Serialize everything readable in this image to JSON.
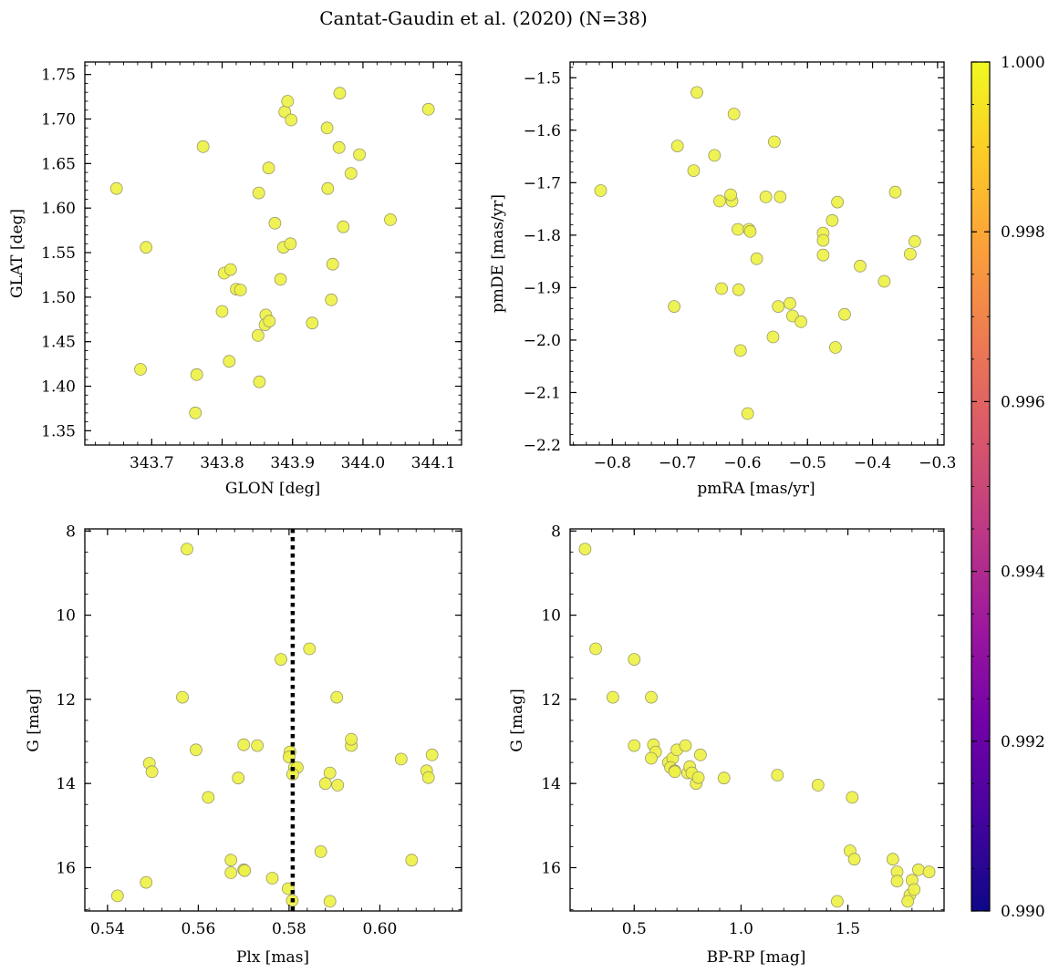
{
  "figure": {
    "title": "Cantat-Gaudin et al. (2020) (N=38)"
  },
  "colors": {
    "point_fill": "#eef145",
    "point_edge": "#9a9a6a",
    "vline": "#000000",
    "colormap": [
      "#0d0887",
      "#46039f",
      "#7201a8",
      "#9c179e",
      "#bd3786",
      "#d8576b",
      "#ed7953",
      "#fb9f3a",
      "#fdca26",
      "#f0f921"
    ]
  },
  "colorbar": {
    "range": [
      0.99,
      1.0
    ],
    "ticks": [
      "0.990",
      "0.992",
      "0.994",
      "0.996",
      "0.998",
      "1.000"
    ]
  },
  "chart_data": [
    {
      "id": "p1",
      "type": "scatter",
      "title": "",
      "xlabel": "GLON [deg]",
      "ylabel": "GLAT [deg]",
      "xlim": [
        343.605,
        344.14
      ],
      "ylim": [
        1.334,
        1.764
      ],
      "xticks": [
        "343.7",
        "343.8",
        "343.9",
        "344.0",
        "344.1"
      ],
      "yticks": [
        "1.35",
        "1.40",
        "1.45",
        "1.50",
        "1.55",
        "1.60",
        "1.65",
        "1.70",
        "1.75"
      ],
      "x": [
        343.65,
        343.692,
        343.684,
        343.773,
        343.764,
        343.762,
        343.8,
        343.803,
        343.812,
        343.81,
        343.82,
        343.826,
        343.852,
        343.851,
        343.853,
        343.862,
        343.861,
        343.867,
        343.866,
        343.875,
        343.883,
        343.887,
        343.889,
        343.893,
        343.898,
        343.897,
        343.928,
        343.949,
        343.95,
        343.955,
        343.957,
        343.967,
        343.966,
        343.972,
        343.983,
        343.995,
        344.039,
        344.093
      ],
      "y": [
        1.622,
        1.556,
        1.419,
        1.669,
        1.413,
        1.37,
        1.484,
        1.527,
        1.531,
        1.428,
        1.509,
        1.508,
        1.617,
        1.457,
        1.405,
        1.48,
        1.469,
        1.473,
        1.645,
        1.583,
        1.52,
        1.556,
        1.708,
        1.72,
        1.699,
        1.56,
        1.471,
        1.69,
        1.622,
        1.497,
        1.537,
        1.729,
        1.668,
        1.579,
        1.639,
        1.66,
        1.587,
        1.711
      ]
    },
    {
      "id": "p2",
      "type": "scatter",
      "title": "",
      "xlabel": "pmRA [mas/yr]",
      "ylabel": "pmDE [mas/yr]",
      "xlim": [
        -0.865,
        -0.29
      ],
      "ylim": [
        -2.2,
        -1.47
      ],
      "xticks": [
        "−0.8",
        "−0.7",
        "−0.6",
        "−0.5",
        "−0.4",
        "−0.3"
      ],
      "yticks": [
        "−2.2",
        "−2.1",
        "−2.0",
        "−1.9",
        "−1.8",
        "−1.7",
        "−1.6",
        "−1.5"
      ],
      "x": [
        -0.818,
        -0.67,
        -0.7,
        -0.675,
        -0.613,
        -0.643,
        -0.635,
        -0.616,
        -0.618,
        -0.607,
        -0.542,
        -0.564,
        -0.551,
        -0.59,
        -0.588,
        -0.578,
        -0.632,
        -0.606,
        -0.705,
        -0.545,
        -0.523,
        -0.527,
        -0.51,
        -0.603,
        -0.553,
        -0.592,
        -0.454,
        -0.462,
        -0.476,
        -0.476,
        -0.476,
        -0.443,
        -0.419,
        -0.457,
        -0.365,
        -0.382,
        -0.342,
        -0.335
      ],
      "y": [
        -1.715,
        -1.528,
        -1.63,
        -1.677,
        -1.569,
        -1.648,
        -1.735,
        -1.735,
        -1.723,
        -1.789,
        -1.727,
        -1.727,
        -1.622,
        -1.789,
        -1.793,
        -1.845,
        -1.902,
        -1.904,
        -1.936,
        -1.936,
        -1.954,
        -1.93,
        -1.965,
        -2.02,
        -1.994,
        -2.14,
        -1.737,
        -1.772,
        -1.796,
        -1.81,
        -1.838,
        -1.951,
        -1.859,
        -2.014,
        -1.718,
        -1.888,
        -1.836,
        -1.812
      ]
    },
    {
      "id": "p3",
      "type": "scatter",
      "title": "",
      "xlabel": "Plx [mas]",
      "ylabel": "G [mag]",
      "xlim": [
        0.535,
        0.618
      ],
      "ylim": [
        17.03,
        7.95
      ],
      "xticks": [
        "0.54",
        "0.56",
        "0.58",
        "0.60"
      ],
      "yticks": [
        "8",
        "10",
        "12",
        "14",
        "16"
      ],
      "vline": 0.5808,
      "x": [
        0.5575,
        0.5782,
        0.5845,
        0.5565,
        0.5905,
        0.5595,
        0.5492,
        0.5498,
        0.57,
        0.573,
        0.5688,
        0.5622,
        0.5802,
        0.5812,
        0.58,
        0.5818,
        0.589,
        0.588,
        0.5907,
        0.5937,
        0.5937,
        0.6047,
        0.6115,
        0.6103,
        0.6107,
        0.5672,
        0.5672,
        0.57,
        0.5702,
        0.5763,
        0.5798,
        0.5807,
        0.587,
        0.589,
        0.607,
        0.5422,
        0.5485,
        0.5808
      ],
      "y": [
        8.43,
        11.05,
        10.8,
        11.95,
        11.95,
        13.2,
        13.52,
        13.72,
        13.08,
        13.1,
        13.87,
        14.33,
        13.25,
        13.62,
        13.37,
        13.62,
        13.75,
        14.0,
        14.04,
        13.1,
        12.95,
        13.42,
        13.32,
        13.7,
        13.86,
        15.82,
        16.12,
        16.05,
        16.07,
        16.25,
        16.5,
        16.78,
        15.62,
        16.8,
        15.82,
        16.67,
        16.35,
        13.78
      ]
    },
    {
      "id": "p4",
      "type": "scatter",
      "title": "",
      "xlabel": "BP-RP [mag]",
      "ylabel": "G [mag]",
      "xlim": [
        0.2,
        1.95
      ],
      "ylim": [
        17.03,
        7.95
      ],
      "xticks": [
        "0.5",
        "1.0",
        "1.5"
      ],
      "yticks": [
        "8",
        "10",
        "12",
        "14",
        "16"
      ],
      "x": [
        0.27,
        0.32,
        0.4,
        0.5,
        0.58,
        0.5,
        0.59,
        0.6,
        0.58,
        0.66,
        0.68,
        0.67,
        0.69,
        0.69,
        0.7,
        0.74,
        0.75,
        0.76,
        0.77,
        0.79,
        0.8,
        0.81,
        0.92,
        1.17,
        1.36,
        1.52,
        1.51,
        1.53,
        1.71,
        1.73,
        1.73,
        1.79,
        1.8,
        1.81,
        1.83,
        1.88,
        1.78,
        1.45
      ],
      "y": [
        8.43,
        10.8,
        11.95,
        11.05,
        11.95,
        13.1,
        13.08,
        13.25,
        13.4,
        13.5,
        13.4,
        13.62,
        13.7,
        13.72,
        13.2,
        13.1,
        13.75,
        13.6,
        13.75,
        14.0,
        13.86,
        13.32,
        13.87,
        13.8,
        14.04,
        14.33,
        15.6,
        15.8,
        15.8,
        16.1,
        16.32,
        16.65,
        16.3,
        16.52,
        16.05,
        16.1,
        16.8,
        16.8
      ]
    }
  ]
}
